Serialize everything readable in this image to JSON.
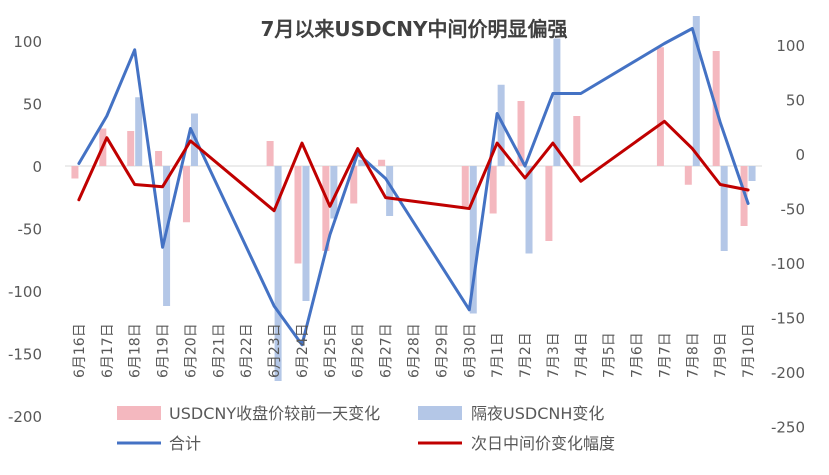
{
  "chart_data": {
    "type": "bar",
    "title": "7月以来USDCNY中间价明显偏强",
    "categories": [
      "6月16日",
      "6月17日",
      "6月18日",
      "6月19日",
      "6月20日",
      "6月21日",
      "6月22日",
      "6月23日",
      "6月24日",
      "6月25日",
      "6月26日",
      "6月27日",
      "6月28日",
      "6月29日",
      "6月30日",
      "7月1日",
      "7月2日",
      "7月3日",
      "7月4日",
      "7月5日",
      "7月6日",
      "7月7日",
      "7月8日",
      "7月9日",
      "7月10日"
    ],
    "left_axis": {
      "ticks": [
        "150",
        "100",
        "50",
        "0",
        "-50",
        "-100",
        "-150",
        "-200"
      ],
      "range": [
        -200,
        150
      ]
    },
    "right_axis": {
      "ticks": [
        "150",
        "100",
        "50",
        "0",
        "-50",
        "-100",
        "-150",
        "-200",
        "-250"
      ],
      "range": [
        -250,
        150
      ]
    },
    "series": [
      {
        "name": "USDCNY收盘价较前一天变化",
        "type": "bar",
        "axis": "left",
        "color": "#F4B8BF",
        "values": [
          -10,
          30,
          28,
          12,
          -45,
          null,
          null,
          20,
          -78,
          -68,
          -30,
          5,
          null,
          null,
          -32,
          -38,
          52,
          -60,
          40,
          null,
          null,
          95,
          -15,
          92,
          -48
        ]
      },
      {
        "name": "隔夜USDCNH变化",
        "type": "bar",
        "axis": "left",
        "color": "#B4C7E7",
        "values": [
          null,
          null,
          55,
          -112,
          42,
          null,
          null,
          -172,
          -108,
          -42,
          5,
          -40,
          null,
          null,
          -118,
          65,
          -70,
          102,
          null,
          null,
          null,
          null,
          120,
          -68,
          -12
        ]
      },
      {
        "name": "合计",
        "type": "line",
        "axis": "left",
        "color": "#4472C4",
        "values": [
          2,
          40,
          93,
          -65,
          30,
          null,
          null,
          -112,
          -143,
          -55,
          10,
          -10,
          null,
          null,
          -115,
          42,
          0,
          58,
          58,
          null,
          null,
          98,
          110,
          35,
          -30
        ]
      },
      {
        "name": "次日中间价变化幅度",
        "type": "line",
        "axis": "right",
        "color": "#C00000",
        "values": [
          -42,
          15,
          -28,
          -30,
          12,
          null,
          null,
          -52,
          10,
          -48,
          5,
          -40,
          null,
          null,
          -50,
          10,
          -22,
          10,
          -25,
          null,
          null,
          30,
          5,
          -28,
          -33
        ]
      }
    ]
  }
}
